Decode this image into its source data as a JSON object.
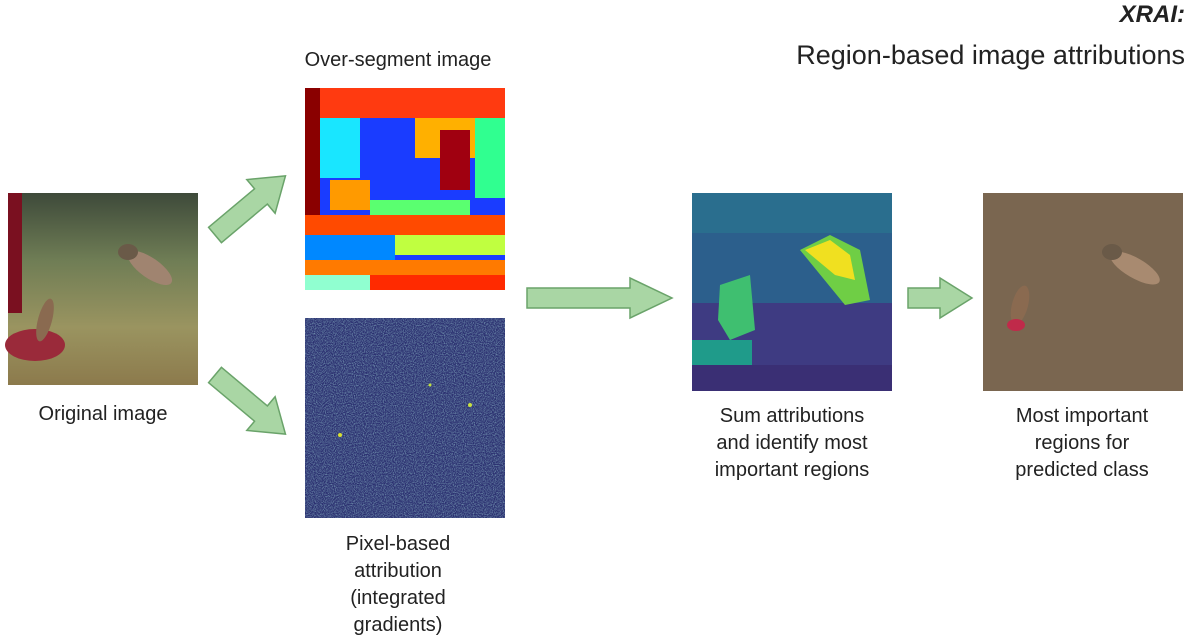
{
  "header": {
    "title": "XRAI:",
    "subtitle": "Region-based image attributions"
  },
  "nodes": [
    {
      "label": [
        "Original image"
      ]
    },
    {
      "label": [
        "Over-segment image"
      ]
    },
    {
      "label": [
        "Pixel-based",
        "attribution",
        "(integrated",
        "gradients)"
      ]
    },
    {
      "label": [
        "Sum attributions",
        "and identify most",
        "important regions"
      ]
    },
    {
      "label": [
        "Most important",
        "regions for",
        "predicted class"
      ]
    }
  ]
}
